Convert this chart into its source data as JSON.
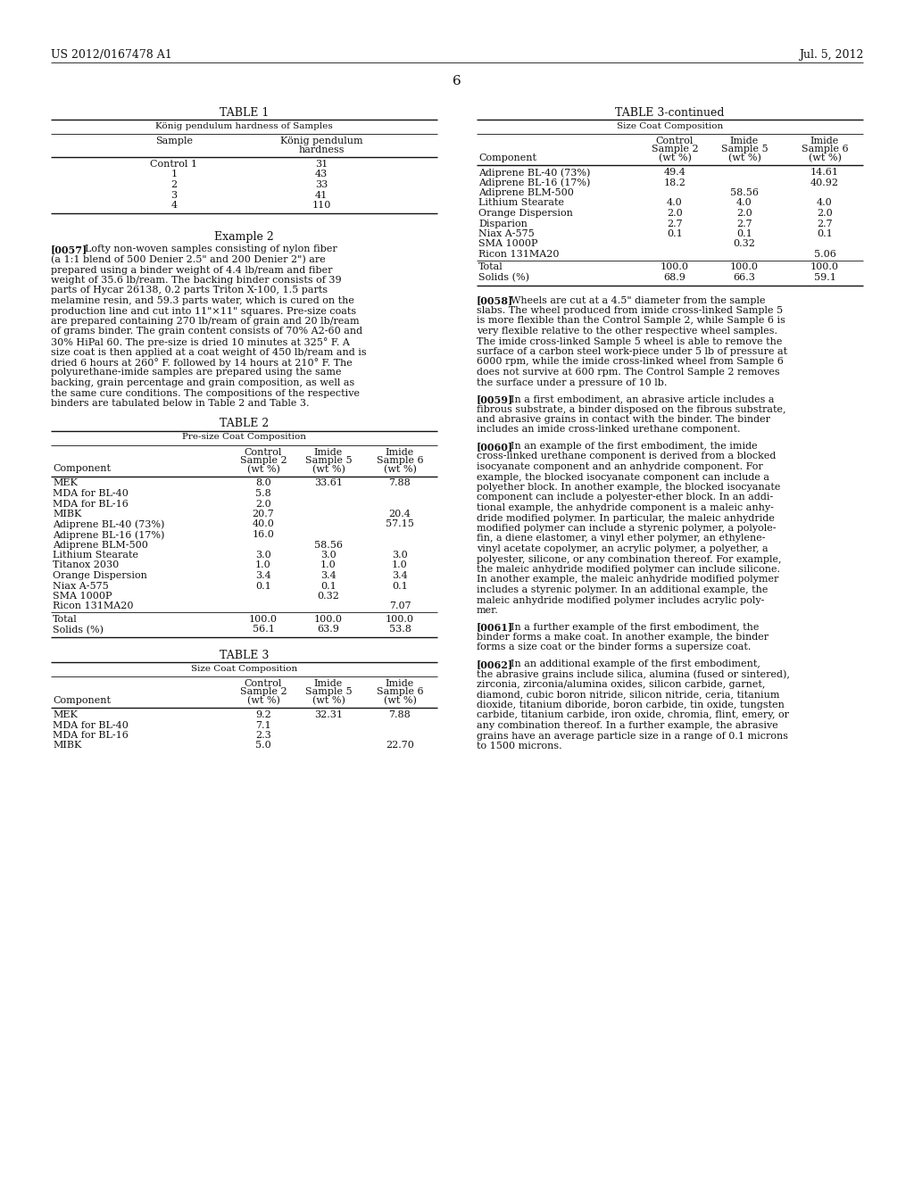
{
  "header_left": "US 2012/0167478 A1",
  "header_right": "Jul. 5, 2012",
  "page_number": "6",
  "bg_color": "#ffffff",
  "table1_title": "TABLE 1",
  "table1_subtitle": "König pendulum hardness of Samples",
  "table1_rows": [
    [
      "Control 1",
      "31"
    ],
    [
      "1",
      "43"
    ],
    [
      "2",
      "33"
    ],
    [
      "3",
      "41"
    ],
    [
      "4",
      "110"
    ]
  ],
  "example2_title": "Example 2",
  "example2_para": "[0057]",
  "example2_text_lines": [
    "Lofty non-woven samples consisting of nylon fiber",
    "(a 1:1 blend of 500 Denier 2.5\" and 200 Denier 2\") are",
    "prepared using a binder weight of 4.4 lb/ream and fiber",
    "weight of 35.6 lb/ream. The backing binder consists of 39",
    "parts of Hycar 26138, 0.2 parts Triton X-100, 1.5 parts",
    "melamine resin, and 59.3 parts water, which is cured on the",
    "production line and cut into 11\"×11\" squares. Pre-size coats",
    "are prepared containing 270 lb/ream of grain and 20 lb/ream",
    "of grams binder. The grain content consists of 70% A2-60 and",
    "30% HiPal 60. The pre-size is dried 10 minutes at 325° F. A",
    "size coat is then applied at a coat weight of 450 lb/ream and is",
    "dried 6 hours at 260° F. followed by 14 hours at 210° F. The",
    "polyurethane-imide samples are prepared using the same",
    "backing, grain percentage and grain composition, as well as",
    "the same cure conditions. The compositions of the respective",
    "binders are tabulated below in Table 2 and Table 3."
  ],
  "table2_title": "TABLE 2",
  "table2_subtitle": "Pre-size Coat Composition",
  "table2_rows": [
    [
      "MEK",
      "8.0",
      "33.61",
      "7.88"
    ],
    [
      "MDA for BL-40",
      "5.8",
      "",
      ""
    ],
    [
      "MDA for BL-16",
      "2.0",
      "",
      ""
    ],
    [
      "MIBK",
      "20.7",
      "",
      "20.4"
    ],
    [
      "Adiprene BL-40 (73%)",
      "40.0",
      "",
      "57.15"
    ],
    [
      "Adiprene BL-16 (17%)",
      "16.0",
      "",
      ""
    ],
    [
      "Adiprene BLM-500",
      "",
      "58.56",
      ""
    ],
    [
      "Lithium Stearate",
      "3.0",
      "3.0",
      "3.0"
    ],
    [
      "Titanox 2030",
      "1.0",
      "1.0",
      "1.0"
    ],
    [
      "Orange Dispersion",
      "3.4",
      "3.4",
      "3.4"
    ],
    [
      "Niax A-575",
      "0.1",
      "0.1",
      "0.1"
    ],
    [
      "SMA 1000P",
      "",
      "0.32",
      ""
    ],
    [
      "Ricon 131MA20",
      "",
      "",
      "7.07"
    ]
  ],
  "table2_total_rows": [
    [
      "Total",
      "100.0",
      "100.0",
      "100.0"
    ],
    [
      "Solids (%)",
      "56.1",
      "63.9",
      "53.8"
    ]
  ],
  "table3_title": "TABLE 3",
  "table3_subtitle": "Size Coat Composition",
  "table3_rows": [
    [
      "MEK",
      "9.2",
      "32.31",
      "7.88"
    ],
    [
      "MDA for BL-40",
      "7.1",
      "",
      ""
    ],
    [
      "MDA for BL-16",
      "2.3",
      "",
      ""
    ],
    [
      "MIBK",
      "5.0",
      "",
      "22.70"
    ]
  ],
  "table3cont_title": "TABLE 3-continued",
  "table3cont_subtitle": "Size Coat Composition",
  "table3cont_rows": [
    [
      "Adiprene BL-40 (73%)",
      "49.4",
      "",
      "14.61"
    ],
    [
      "Adiprene BL-16 (17%)",
      "18.2",
      "",
      "40.92"
    ],
    [
      "Adiprene BLM-500",
      "",
      "58.56",
      ""
    ],
    [
      "Lithium Stearate",
      "4.0",
      "4.0",
      "4.0"
    ],
    [
      "Orange Dispersion",
      "2.0",
      "2.0",
      "2.0"
    ],
    [
      "Disparion",
      "2.7",
      "2.7",
      "2.7"
    ],
    [
      "Niax A-575",
      "0.1",
      "0.1",
      "0.1"
    ],
    [
      "SMA 1000P",
      "",
      "0.32",
      ""
    ],
    [
      "Ricon 131MA20",
      "",
      "",
      "5.06"
    ]
  ],
  "table3cont_total_rows": [
    [
      "Total",
      "100.0",
      "100.0",
      "100.0"
    ],
    [
      "Solids (%)",
      "68.9",
      "66.3",
      "59.1"
    ]
  ],
  "para_0058_tag": "[0058]",
  "para_0058_lines": [
    "Wheels are cut at a 4.5\" diameter from the sample",
    "slabs. The wheel produced from imide cross-linked Sample 5",
    "is more flexible than the Control Sample 2, while Sample 6 is",
    "very flexible relative to the other respective wheel samples.",
    "The imide cross-linked Sample 5 wheel is able to remove the",
    "surface of a carbon steel work-piece under 5 lb of pressure at",
    "6000 rpm, while the imide cross-linked wheel from Sample 6",
    "does not survive at 600 rpm. The Control Sample 2 removes",
    "the surface under a pressure of 10 lb."
  ],
  "para_0059_tag": "[0059]",
  "para_0059_lines": [
    "In a first embodiment, an abrasive article includes a",
    "fibrous substrate, a binder disposed on the fibrous substrate,",
    "and abrasive grains in contact with the binder. The binder",
    "includes an imide cross-linked urethane component."
  ],
  "para_0060_tag": "[0060]",
  "para_0060_lines": [
    "In an example of the first embodiment, the imide",
    "cross-linked urethane component is derived from a blocked",
    "isocyanate component and an anhydride component. For",
    "example, the blocked isocyanate component can include a",
    "polyether block. In another example, the blocked isocyanate",
    "component can include a polyester-ether block. In an addi-",
    "tional example, the anhydride component is a maleic anhy-",
    "dride modified polymer. In particular, the maleic anhydride",
    "modified polymer can include a styrenic polymer, a polyole-",
    "fin, a diene elastomer, a vinyl ether polymer, an ethylene-",
    "vinyl acetate copolymer, an acrylic polymer, a polyether, a",
    "polyester, silicone, or any combination thereof. For example,",
    "the maleic anhydride modified polymer can include silicone.",
    "In another example, the maleic anhydride modified polymer",
    "includes a styrenic polymer. In an additional example, the",
    "maleic anhydride modified polymer includes acrylic poly-",
    "mer."
  ],
  "para_0061_tag": "[0061]",
  "para_0061_lines": [
    "In a further example of the first embodiment, the",
    "binder forms a make coat. In another example, the binder",
    "forms a size coat or the binder forms a supersize coat."
  ],
  "para_0062_tag": "[0062]",
  "para_0062_lines": [
    "In an additional example of the first embodiment,",
    "the abrasive grains include silica, alumina (fused or sintered),",
    "zirconia, zirconia/alumina oxides, silicon carbide, garnet,",
    "diamond, cubic boron nitride, silicon nitride, ceria, titanium",
    "dioxide, titanium diboride, boron carbide, tin oxide, tungsten",
    "carbide, titanium carbide, iron oxide, chromia, flint, emery, or",
    "any combination thereof. In a further example, the abrasive",
    "grains have an average particle size in a range of 0.1 microns",
    "to 1500 microns."
  ]
}
